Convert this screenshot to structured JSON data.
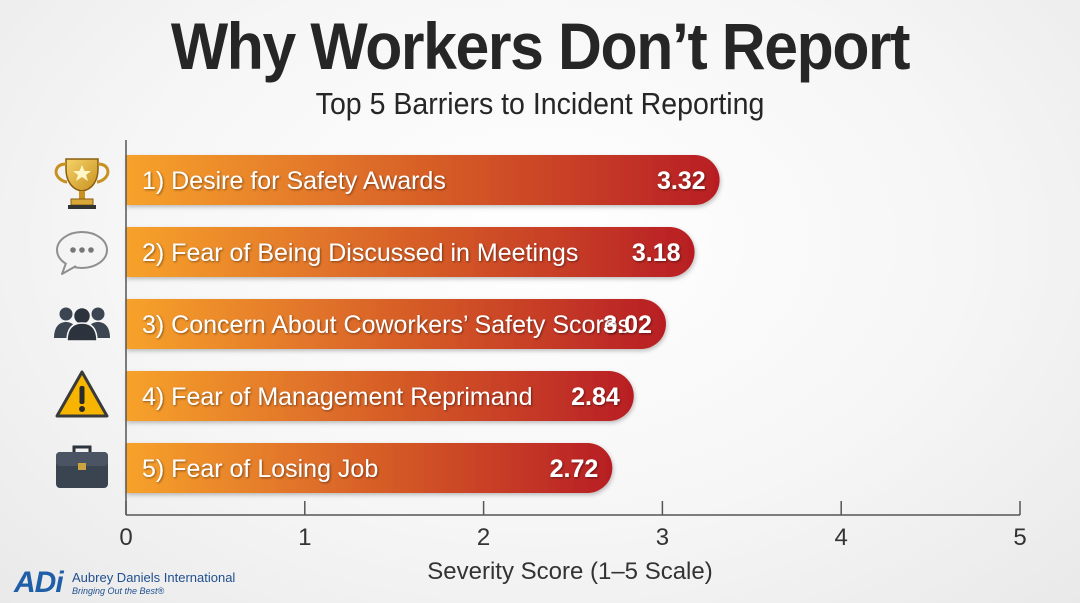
{
  "chart_data": {
    "type": "bar",
    "orientation": "horizontal",
    "title": "Why Workers Don’t Report",
    "subtitle": "Top 5 Barriers to Incident Reporting",
    "categories": [
      "1) Desire for Safety Awards",
      "2) Fear of Being Discussed in Meetings",
      "3) Concern About Coworkers’ Safety Scores",
      "4) Fear of Management Reprimand",
      "5) Fear of Losing Job"
    ],
    "values": [
      3.32,
      3.18,
      3.02,
      2.84,
      2.72
    ],
    "value_labels": [
      "3.32",
      "3.18",
      "3.02",
      "2.84",
      "2.72"
    ],
    "icons": [
      "trophy-icon",
      "speech-bubble-icon",
      "people-group-icon",
      "warning-icon",
      "briefcase-icon"
    ],
    "xlabel": "Severity Score (1–5 Scale)",
    "xlim": [
      0,
      5
    ],
    "xticks": [
      "0",
      "1",
      "2",
      "3",
      "4",
      "5"
    ],
    "grid": false,
    "legend": "none",
    "colors": {
      "bar_start": "#f7a22c",
      "bar_end": "#b81e24",
      "text": "#262626"
    }
  },
  "logo": {
    "mark": "ADi",
    "name": "Aubrey Daniels International",
    "tagline": "Bringing Out the Best®"
  }
}
